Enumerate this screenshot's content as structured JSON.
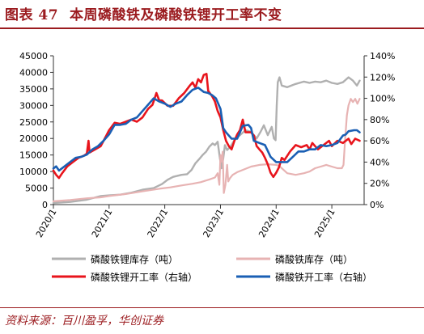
{
  "header": {
    "figure_label": "图表 47",
    "title": "本周磷酸铁及磷酸铁锂开工率不变"
  },
  "footer": {
    "source": "资料来源：百川盈孚，华创证券"
  },
  "chart_data": {
    "type": "line",
    "title": "",
    "xlabel": "",
    "ylabel_left": "",
    "ylabel_right": "",
    "x_ticks": [
      "2020/1",
      "2021/1",
      "2022/1",
      "2023/1",
      "2024/1",
      "2025/1"
    ],
    "y_left": {
      "range": [
        0,
        45000
      ],
      "ticks": [
        "0",
        "5000",
        "10000",
        "15000",
        "20000",
        "25000",
        "30000",
        "35000",
        "40000",
        "45000"
      ]
    },
    "y_right": {
      "range": [
        0,
        140
      ],
      "ticks": [
        "0%",
        "20%",
        "40%",
        "60%",
        "80%",
        "100%",
        "120%",
        "140%"
      ]
    },
    "grid": false,
    "legend_position": "bottom",
    "colors": {
      "lfp_inventory": "#b0b0b0",
      "fp_inventory": "#e7b3b3",
      "lfp_utilization": "#e8141c",
      "fp_utilization": "#1a5fb4",
      "brand": "#9b1b1f"
    },
    "series": [
      {
        "key": "lfp_inventory",
        "name": "磷酸铁锂库存（吨）",
        "axis": "left",
        "points": [
          [
            2020.0,
            500
          ],
          [
            2020.3,
            800
          ],
          [
            2020.6,
            1500
          ],
          [
            2020.85,
            2600
          ],
          [
            2021.0,
            2800
          ],
          [
            2021.2,
            3000
          ],
          [
            2021.4,
            3600
          ],
          [
            2021.6,
            4500
          ],
          [
            2021.8,
            5000
          ],
          [
            2021.95,
            6200
          ],
          [
            2022.05,
            7500
          ],
          [
            2022.15,
            8400
          ],
          [
            2022.3,
            9000
          ],
          [
            2022.4,
            9200
          ],
          [
            2022.48,
            10500
          ],
          [
            2022.55,
            12500
          ],
          [
            2022.62,
            13800
          ],
          [
            2022.68,
            15000
          ],
          [
            2022.74,
            16000
          ],
          [
            2022.8,
            17500
          ],
          [
            2022.86,
            18500
          ],
          [
            2022.9,
            18000
          ],
          [
            2022.95,
            19000
          ],
          [
            2022.99,
            14000
          ],
          [
            2023.02,
            11000
          ],
          [
            2023.05,
            14000
          ],
          [
            2023.08,
            18000
          ],
          [
            2023.12,
            16500
          ],
          [
            2023.18,
            17500
          ],
          [
            2023.25,
            19500
          ],
          [
            2023.35,
            21000
          ],
          [
            2023.45,
            22500
          ],
          [
            2023.55,
            22000
          ],
          [
            2023.65,
            20000
          ],
          [
            2023.72,
            22000
          ],
          [
            2023.78,
            24000
          ],
          [
            2023.85,
            21000
          ],
          [
            2023.92,
            23500
          ],
          [
            2023.96,
            20000
          ],
          [
            2023.99,
            19500
          ],
          [
            2024.01,
            30000
          ],
          [
            2024.03,
            37000
          ],
          [
            2024.06,
            38500
          ],
          [
            2024.1,
            36000
          ],
          [
            2024.2,
            35500
          ],
          [
            2024.35,
            36500
          ],
          [
            2024.5,
            37200
          ],
          [
            2024.6,
            36800
          ],
          [
            2024.7,
            37200
          ],
          [
            2024.8,
            37000
          ],
          [
            2024.9,
            37500
          ],
          [
            2025.0,
            36800
          ],
          [
            2025.1,
            36500
          ],
          [
            2025.2,
            37000
          ],
          [
            2025.3,
            38500
          ],
          [
            2025.38,
            37500
          ],
          [
            2025.45,
            36000
          ],
          [
            2025.5,
            37500
          ]
        ]
      },
      {
        "key": "fp_inventory",
        "name": "磷酸铁库存（吨）",
        "axis": "left",
        "points": [
          [
            2020.0,
            1000
          ],
          [
            2020.3,
            1400
          ],
          [
            2020.6,
            1900
          ],
          [
            2020.85,
            2200
          ],
          [
            2021.0,
            2600
          ],
          [
            2021.3,
            3200
          ],
          [
            2021.6,
            4000
          ],
          [
            2021.9,
            4800
          ],
          [
            2022.1,
            5200
          ],
          [
            2022.3,
            5800
          ],
          [
            2022.5,
            6300
          ],
          [
            2022.65,
            6800
          ],
          [
            2022.8,
            7600
          ],
          [
            2022.9,
            8200
          ],
          [
            2022.95,
            9500
          ],
          [
            2022.98,
            6000
          ],
          [
            2023.0,
            15000
          ],
          [
            2023.02,
            13000
          ],
          [
            2023.04,
            16000
          ],
          [
            2023.06,
            3500
          ],
          [
            2023.09,
            6000
          ],
          [
            2023.12,
            12000
          ],
          [
            2023.14,
            7000
          ],
          [
            2023.17,
            8000
          ],
          [
            2023.22,
            9000
          ],
          [
            2023.3,
            9800
          ],
          [
            2023.4,
            10500
          ],
          [
            2023.55,
            11500
          ],
          [
            2023.7,
            12000
          ],
          [
            2023.85,
            12200
          ],
          [
            2024.0,
            12000
          ],
          [
            2024.05,
            11800
          ],
          [
            2024.2,
            9500
          ],
          [
            2024.35,
            9000
          ],
          [
            2024.5,
            9500
          ],
          [
            2024.6,
            10000
          ],
          [
            2024.7,
            11000
          ],
          [
            2024.8,
            11500
          ],
          [
            2024.9,
            12000
          ],
          [
            2025.0,
            11500
          ],
          [
            2025.1,
            11000
          ],
          [
            2025.18,
            11000
          ],
          [
            2025.21,
            12000
          ],
          [
            2025.24,
            20000
          ],
          [
            2025.27,
            27000
          ],
          [
            2025.3,
            30000
          ],
          [
            2025.34,
            32000
          ],
          [
            2025.38,
            31000
          ],
          [
            2025.42,
            32000
          ],
          [
            2025.46,
            30500
          ],
          [
            2025.5,
            32000
          ]
        ]
      },
      {
        "key": "lfp_utilization",
        "name": "磷酸铁锂开工率（右轴）",
        "axis": "right",
        "points": [
          [
            2020.0,
            32
          ],
          [
            2020.05,
            28
          ],
          [
            2020.1,
            25
          ],
          [
            2020.15,
            29
          ],
          [
            2020.25,
            36
          ],
          [
            2020.35,
            40
          ],
          [
            2020.45,
            44
          ],
          [
            2020.55,
            46
          ],
          [
            2020.6,
            48
          ],
          [
            2020.63,
            60
          ],
          [
            2020.65,
            49
          ],
          [
            2020.75,
            52
          ],
          [
            2020.85,
            55
          ],
          [
            2020.95,
            65
          ],
          [
            2021.0,
            70
          ],
          [
            2021.1,
            77
          ],
          [
            2021.2,
            76
          ],
          [
            2021.3,
            78
          ],
          [
            2021.4,
            80
          ],
          [
            2021.5,
            78
          ],
          [
            2021.6,
            82
          ],
          [
            2021.7,
            90
          ],
          [
            2021.78,
            94
          ],
          [
            2021.85,
            105
          ],
          [
            2021.9,
            98
          ],
          [
            2021.95,
            98
          ],
          [
            2022.05,
            93
          ],
          [
            2022.15,
            93
          ],
          [
            2022.25,
            100
          ],
          [
            2022.35,
            105
          ],
          [
            2022.45,
            112
          ],
          [
            2022.5,
            115
          ],
          [
            2022.55,
            110
          ],
          [
            2022.6,
            118
          ],
          [
            2022.65,
            115
          ],
          [
            2022.7,
            122
          ],
          [
            2022.75,
            123
          ],
          [
            2022.78,
            107
          ],
          [
            2022.85,
            102
          ],
          [
            2022.9,
            97
          ],
          [
            2022.95,
            88
          ],
          [
            2023.0,
            82
          ],
          [
            2023.05,
            70
          ],
          [
            2023.1,
            60
          ],
          [
            2023.15,
            55
          ],
          [
            2023.2,
            52
          ],
          [
            2023.25,
            60
          ],
          [
            2023.3,
            66
          ],
          [
            2023.35,
            70
          ],
          [
            2023.4,
            80
          ],
          [
            2023.45,
            68
          ],
          [
            2023.55,
            68
          ],
          [
            2023.6,
            65
          ],
          [
            2023.65,
            55
          ],
          [
            2023.7,
            52
          ],
          [
            2023.75,
            49
          ],
          [
            2023.8,
            44
          ],
          [
            2023.85,
            38
          ],
          [
            2023.9,
            30
          ],
          [
            2023.95,
            26
          ],
          [
            2024.0,
            30
          ],
          [
            2024.05,
            35
          ],
          [
            2024.1,
            44
          ],
          [
            2024.15,
            42
          ],
          [
            2024.25,
            50
          ],
          [
            2024.35,
            56
          ],
          [
            2024.45,
            54
          ],
          [
            2024.55,
            56
          ],
          [
            2024.6,
            52
          ],
          [
            2024.65,
            58
          ],
          [
            2024.75,
            52
          ],
          [
            2024.85,
            56
          ],
          [
            2024.95,
            60
          ],
          [
            2025.0,
            55
          ],
          [
            2025.1,
            60
          ],
          [
            2025.2,
            58
          ],
          [
            2025.3,
            62
          ],
          [
            2025.35,
            57
          ],
          [
            2025.42,
            62
          ],
          [
            2025.5,
            60
          ]
        ]
      },
      {
        "key": "fp_utilization",
        "name": "磷酸铁开工率（右轴）",
        "axis": "right",
        "points": [
          [
            2020.0,
            34
          ],
          [
            2020.05,
            36
          ],
          [
            2020.1,
            32
          ],
          [
            2020.2,
            36
          ],
          [
            2020.3,
            40
          ],
          [
            2020.4,
            44
          ],
          [
            2020.5,
            45
          ],
          [
            2020.6,
            47
          ],
          [
            2020.7,
            52
          ],
          [
            2020.8,
            55
          ],
          [
            2020.9,
            60
          ],
          [
            2021.0,
            66
          ],
          [
            2021.1,
            75
          ],
          [
            2021.2,
            75
          ],
          [
            2021.3,
            76
          ],
          [
            2021.4,
            80
          ],
          [
            2021.5,
            82
          ],
          [
            2021.6,
            88
          ],
          [
            2021.7,
            94
          ],
          [
            2021.8,
            100
          ],
          [
            2021.9,
            97
          ],
          [
            2022.0,
            95
          ],
          [
            2022.1,
            92
          ],
          [
            2022.2,
            95
          ],
          [
            2022.3,
            97
          ],
          [
            2022.4,
            103
          ],
          [
            2022.5,
            108
          ],
          [
            2022.6,
            110
          ],
          [
            2022.7,
            106
          ],
          [
            2022.78,
            105
          ],
          [
            2022.85,
            103
          ],
          [
            2022.92,
            100
          ],
          [
            2023.0,
            90
          ],
          [
            2023.05,
            72
          ],
          [
            2023.1,
            68
          ],
          [
            2023.2,
            62
          ],
          [
            2023.3,
            62
          ],
          [
            2023.4,
            74
          ],
          [
            2023.5,
            75
          ],
          [
            2023.55,
            72
          ],
          [
            2023.6,
            60
          ],
          [
            2023.7,
            58
          ],
          [
            2023.8,
            56
          ],
          [
            2023.9,
            45
          ],
          [
            2024.0,
            40
          ],
          [
            2024.05,
            40
          ],
          [
            2024.1,
            40
          ],
          [
            2024.2,
            40
          ],
          [
            2024.3,
            45
          ],
          [
            2024.4,
            50
          ],
          [
            2024.5,
            50
          ],
          [
            2024.6,
            52
          ],
          [
            2024.7,
            52
          ],
          [
            2024.8,
            56
          ],
          [
            2024.9,
            55
          ],
          [
            2025.0,
            56
          ],
          [
            2025.1,
            58
          ],
          [
            2025.2,
            65
          ],
          [
            2025.25,
            66
          ],
          [
            2025.3,
            69
          ],
          [
            2025.4,
            70
          ],
          [
            2025.45,
            70
          ],
          [
            2025.5,
            68
          ]
        ]
      }
    ]
  }
}
